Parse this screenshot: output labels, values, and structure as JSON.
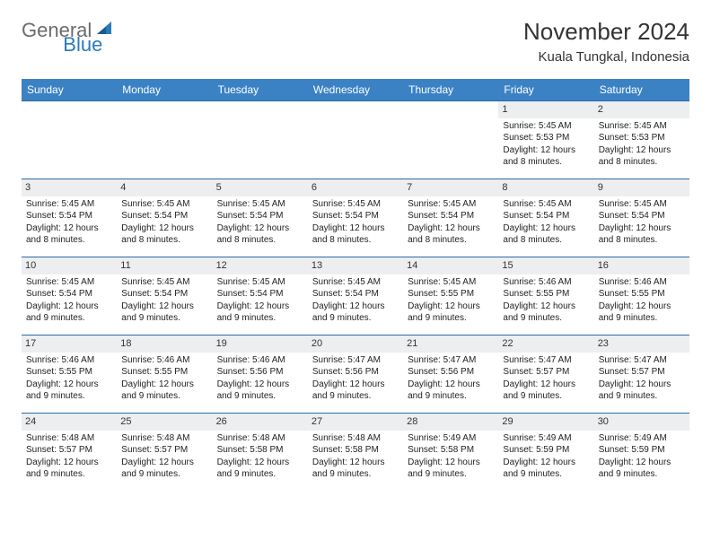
{
  "logo": {
    "part1": "General",
    "part2": "Blue"
  },
  "title": "November 2024",
  "location": "Kuala Tungkal, Indonesia",
  "header_color": "#3b82c4",
  "header_text_color": "#ffffff",
  "row_border_color": "#2a6aa8",
  "daynum_bg": "#eceef0",
  "body_text_color": "#222222",
  "days": [
    "Sunday",
    "Monday",
    "Tuesday",
    "Wednesday",
    "Thursday",
    "Friday",
    "Saturday"
  ],
  "weeks": [
    [
      null,
      null,
      null,
      null,
      null,
      {
        "n": "1",
        "sr": "5:45 AM",
        "ss": "5:53 PM",
        "dl": "12 hours and 8 minutes."
      },
      {
        "n": "2",
        "sr": "5:45 AM",
        "ss": "5:53 PM",
        "dl": "12 hours and 8 minutes."
      }
    ],
    [
      {
        "n": "3",
        "sr": "5:45 AM",
        "ss": "5:54 PM",
        "dl": "12 hours and 8 minutes."
      },
      {
        "n": "4",
        "sr": "5:45 AM",
        "ss": "5:54 PM",
        "dl": "12 hours and 8 minutes."
      },
      {
        "n": "5",
        "sr": "5:45 AM",
        "ss": "5:54 PM",
        "dl": "12 hours and 8 minutes."
      },
      {
        "n": "6",
        "sr": "5:45 AM",
        "ss": "5:54 PM",
        "dl": "12 hours and 8 minutes."
      },
      {
        "n": "7",
        "sr": "5:45 AM",
        "ss": "5:54 PM",
        "dl": "12 hours and 8 minutes."
      },
      {
        "n": "8",
        "sr": "5:45 AM",
        "ss": "5:54 PM",
        "dl": "12 hours and 8 minutes."
      },
      {
        "n": "9",
        "sr": "5:45 AM",
        "ss": "5:54 PM",
        "dl": "12 hours and 8 minutes."
      }
    ],
    [
      {
        "n": "10",
        "sr": "5:45 AM",
        "ss": "5:54 PM",
        "dl": "12 hours and 9 minutes."
      },
      {
        "n": "11",
        "sr": "5:45 AM",
        "ss": "5:54 PM",
        "dl": "12 hours and 9 minutes."
      },
      {
        "n": "12",
        "sr": "5:45 AM",
        "ss": "5:54 PM",
        "dl": "12 hours and 9 minutes."
      },
      {
        "n": "13",
        "sr": "5:45 AM",
        "ss": "5:54 PM",
        "dl": "12 hours and 9 minutes."
      },
      {
        "n": "14",
        "sr": "5:45 AM",
        "ss": "5:55 PM",
        "dl": "12 hours and 9 minutes."
      },
      {
        "n": "15",
        "sr": "5:46 AM",
        "ss": "5:55 PM",
        "dl": "12 hours and 9 minutes."
      },
      {
        "n": "16",
        "sr": "5:46 AM",
        "ss": "5:55 PM",
        "dl": "12 hours and 9 minutes."
      }
    ],
    [
      {
        "n": "17",
        "sr": "5:46 AM",
        "ss": "5:55 PM",
        "dl": "12 hours and 9 minutes."
      },
      {
        "n": "18",
        "sr": "5:46 AM",
        "ss": "5:55 PM",
        "dl": "12 hours and 9 minutes."
      },
      {
        "n": "19",
        "sr": "5:46 AM",
        "ss": "5:56 PM",
        "dl": "12 hours and 9 minutes."
      },
      {
        "n": "20",
        "sr": "5:47 AM",
        "ss": "5:56 PM",
        "dl": "12 hours and 9 minutes."
      },
      {
        "n": "21",
        "sr": "5:47 AM",
        "ss": "5:56 PM",
        "dl": "12 hours and 9 minutes."
      },
      {
        "n": "22",
        "sr": "5:47 AM",
        "ss": "5:57 PM",
        "dl": "12 hours and 9 minutes."
      },
      {
        "n": "23",
        "sr": "5:47 AM",
        "ss": "5:57 PM",
        "dl": "12 hours and 9 minutes."
      }
    ],
    [
      {
        "n": "24",
        "sr": "5:48 AM",
        "ss": "5:57 PM",
        "dl": "12 hours and 9 minutes."
      },
      {
        "n": "25",
        "sr": "5:48 AM",
        "ss": "5:57 PM",
        "dl": "12 hours and 9 minutes."
      },
      {
        "n": "26",
        "sr": "5:48 AM",
        "ss": "5:58 PM",
        "dl": "12 hours and 9 minutes."
      },
      {
        "n": "27",
        "sr": "5:48 AM",
        "ss": "5:58 PM",
        "dl": "12 hours and 9 minutes."
      },
      {
        "n": "28",
        "sr": "5:49 AM",
        "ss": "5:58 PM",
        "dl": "12 hours and 9 minutes."
      },
      {
        "n": "29",
        "sr": "5:49 AM",
        "ss": "5:59 PM",
        "dl": "12 hours and 9 minutes."
      },
      {
        "n": "30",
        "sr": "5:49 AM",
        "ss": "5:59 PM",
        "dl": "12 hours and 9 minutes."
      }
    ]
  ],
  "labels": {
    "sunrise": "Sunrise:",
    "sunset": "Sunset:",
    "daylight": "Daylight:"
  }
}
